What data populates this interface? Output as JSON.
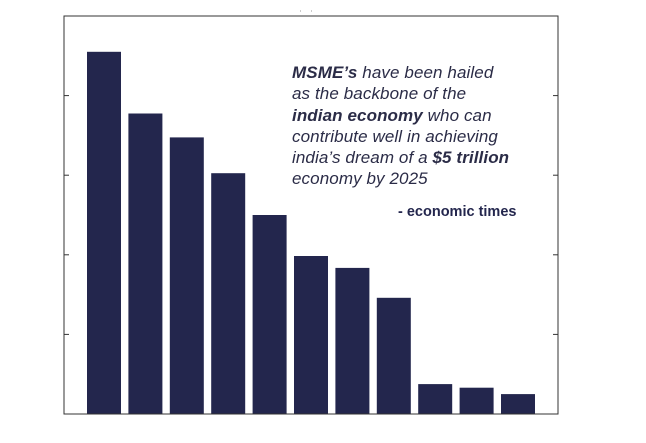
{
  "chart_data": {
    "type": "bar",
    "values": [
      9.1,
      7.55,
      6.95,
      6.05,
      5.0,
      3.97,
      3.67,
      2.92,
      0.75,
      0.66,
      0.5
    ],
    "ylim": [
      0,
      10
    ],
    "yticks": [
      0,
      2,
      4,
      6,
      8
    ],
    "grid": false,
    "colors": {
      "bar": "#23264d",
      "axis": "#333333",
      "background": "#ffffff"
    },
    "annotation": {
      "line1_bold": "MSME’s",
      "line1_rest": " have been hailed",
      "line2": "as the backbone of the",
      "line3_bold": "indian economy",
      "line3_rest": " who can",
      "line4": "contribute well in achieving",
      "line5_pre": "india’s dream of a ",
      "line5_bold": "$5 trillion",
      "line6": "economy by 2025",
      "source": "- economic times"
    }
  }
}
